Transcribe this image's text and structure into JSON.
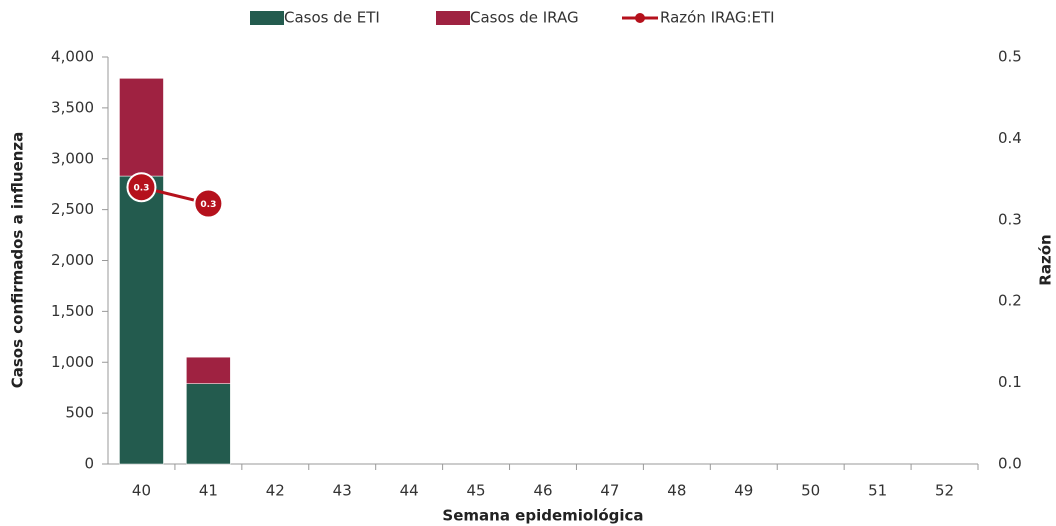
{
  "chart_data": {
    "type": "bar",
    "x_label": "Semana epidemiológica",
    "y_label": "Casos confirmados a influenza",
    "y2_label": "Razón",
    "categories": [
      "40",
      "41",
      "42",
      "43",
      "44",
      "45",
      "46",
      "47",
      "48",
      "49",
      "50",
      "51",
      "52"
    ],
    "series": [
      {
        "name": "Casos de ETI",
        "color": "#235b4e",
        "values": [
          2830,
          790,
          null,
          null,
          null,
          null,
          null,
          null,
          null,
          null,
          null,
          null,
          null
        ]
      },
      {
        "name": "Casos de IRAG",
        "color": "#9f2241",
        "values": [
          960,
          260,
          null,
          null,
          null,
          null,
          null,
          null,
          null,
          null,
          null,
          null,
          null
        ]
      },
      {
        "name": "Razón IRAG:ETI",
        "color": "#b5111c",
        "type": "line",
        "axis": "y2",
        "values": [
          0.34,
          0.32,
          null,
          null,
          null,
          null,
          null,
          null,
          null,
          null,
          null,
          null,
          null
        ],
        "value_labels": [
          "0.3",
          "0.3",
          null,
          null,
          null,
          null,
          null,
          null,
          null,
          null,
          null,
          null,
          null
        ]
      }
    ],
    "stacked": true,
    "ylim": [
      0,
      4000
    ],
    "yticks": [
      0,
      500,
      {
        "value": 1000,
        "label": "1,000"
      },
      {
        "value": 1500,
        "label": "1,500"
      },
      {
        "value": 2000,
        "label": "2,000"
      },
      {
        "value": 2500,
        "label": "2,500"
      },
      {
        "value": 3000,
        "label": "3,000"
      },
      {
        "value": 3500,
        "label": "3,500"
      },
      {
        "value": 4000,
        "label": "4,000"
      }
    ],
    "y2lim": [
      0,
      0.5
    ],
    "y2ticks": [
      {
        "value": 0,
        "label": "0.0"
      },
      0.1,
      0.2,
      0.3,
      0.4,
      0.5
    ],
    "legend": "top"
  }
}
